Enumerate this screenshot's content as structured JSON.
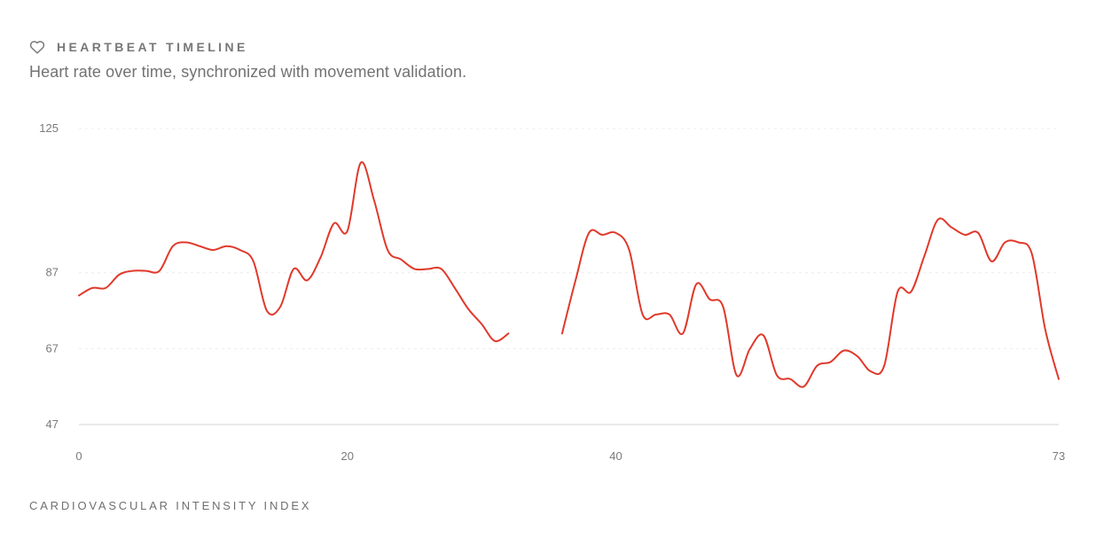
{
  "header": {
    "title": "HEARTBEAT TIMELINE",
    "subtitle": "Heart rate over time, synchronized with movement validation.",
    "icon": "heart-icon"
  },
  "footer": {
    "label": "CARDIOVASCULAR INTENSITY INDEX"
  },
  "chart_data": {
    "type": "line",
    "title": "",
    "xlabel": "",
    "ylabel": "",
    "xlim": [
      0,
      73
    ],
    "ylim": [
      47,
      125
    ],
    "x_ticks": [
      0,
      20,
      40,
      73
    ],
    "y_ticks": [
      47,
      67,
      87,
      125
    ],
    "grid": "horizontal-dashed",
    "line_color": "#e0392b",
    "series": [
      {
        "name": "",
        "segments": [
          [
            [
              0,
              81
            ],
            [
              1,
              83
            ],
            [
              2,
              83
            ],
            [
              3,
              86.5
            ],
            [
              4,
              87.5
            ],
            [
              5,
              87.5
            ],
            [
              6,
              87.5
            ],
            [
              7,
              94
            ],
            [
              8,
              95
            ],
            [
              9,
              94
            ],
            [
              10,
              93
            ],
            [
              11,
              94
            ],
            [
              12,
              93
            ],
            [
              13,
              90
            ],
            [
              14,
              77
            ],
            [
              15,
              78
            ],
            [
              16,
              88
            ],
            [
              17,
              85
            ],
            [
              18,
              91
            ],
            [
              19,
              100
            ],
            [
              20,
              98
            ],
            [
              21,
              116
            ],
            [
              22,
              106
            ],
            [
              23,
              93
            ],
            [
              24,
              90.5
            ],
            [
              25,
              88
            ],
            [
              26,
              88
            ],
            [
              27,
              88
            ],
            [
              28,
              83
            ],
            [
              29,
              77.5
            ],
            [
              30,
              73.5
            ],
            [
              31,
              69
            ],
            [
              32,
              71
            ]
          ],
          [
            [
              36,
              71
            ],
            [
              37,
              85
            ],
            [
              38,
              97.5
            ],
            [
              39,
              97
            ],
            [
              40,
              97.5
            ],
            [
              41,
              93
            ],
            [
              42,
              76
            ],
            [
              43,
              76
            ],
            [
              44,
              76
            ],
            [
              45,
              71
            ],
            [
              46,
              84
            ],
            [
              47,
              80
            ],
            [
              48,
              78
            ],
            [
              49,
              60
            ],
            [
              50,
              67
            ],
            [
              51,
              70.5
            ],
            [
              52,
              60
            ],
            [
              53,
              59
            ],
            [
              54,
              57
            ],
            [
              55,
              62.5
            ],
            [
              56,
              63.5
            ],
            [
              57,
              66.5
            ],
            [
              58,
              65
            ],
            [
              59,
              61
            ],
            [
              60,
              62.5
            ],
            [
              61,
              82
            ],
            [
              62,
              82
            ],
            [
              63,
              91.5
            ],
            [
              64,
              101
            ],
            [
              65,
              99
            ],
            [
              66,
              97
            ],
            [
              67,
              97.5
            ],
            [
              68,
              90
            ],
            [
              69,
              95
            ],
            [
              70,
              95
            ],
            [
              71,
              92
            ],
            [
              72,
              72
            ],
            [
              73,
              59
            ]
          ]
        ]
      }
    ]
  }
}
